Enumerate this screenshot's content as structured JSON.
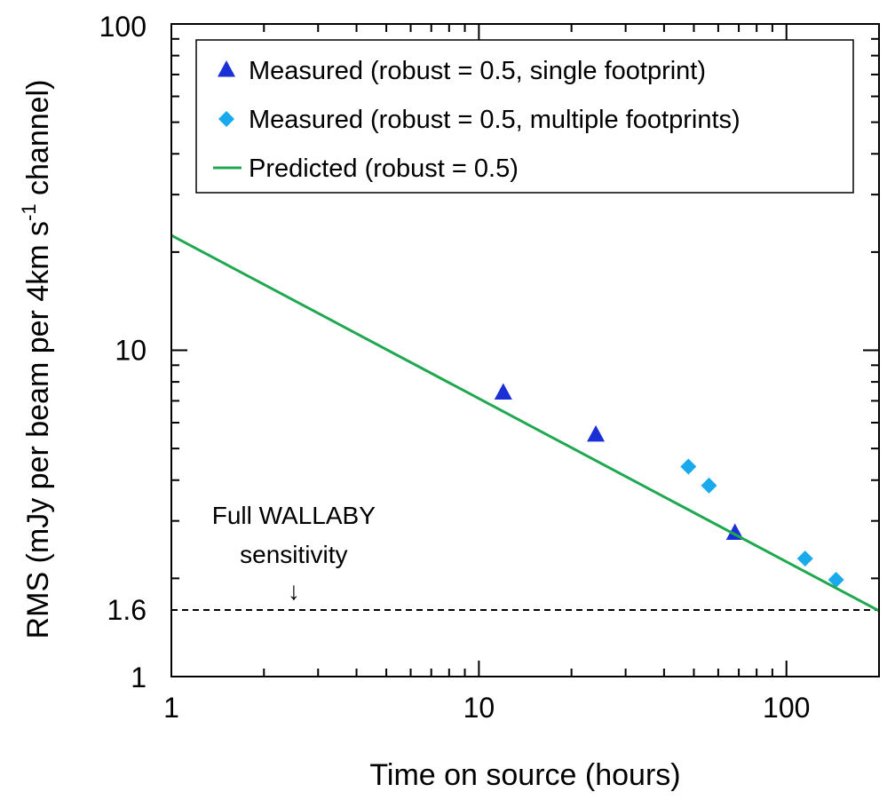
{
  "chart_data": {
    "type": "scatter",
    "title": "",
    "xlabel": "Time on source (hours)",
    "ylabel_parts": {
      "main": "RMS (mJy per beam per 4km s",
      "sup": "-1",
      "tail": " channel)"
    },
    "xscale": "log",
    "yscale": "log",
    "xlim": [
      1,
      200
    ],
    "ylim": [
      1,
      100
    ],
    "x_tick_labels": [
      {
        "value": 1,
        "label": "1"
      },
      {
        "value": 10,
        "label": "10"
      },
      {
        "value": 100,
        "label": "100"
      }
    ],
    "y_tick_labels": [
      {
        "value": 1,
        "label": "1"
      },
      {
        "value": 1.6,
        "label": "1.6"
      },
      {
        "value": 10,
        "label": "10"
      },
      {
        "value": 100,
        "label": "100"
      }
    ],
    "grid": false,
    "legend_position": "top",
    "series": [
      {
        "name": "Measured (robust = 0.5, single footprint)",
        "kind": "scatter",
        "marker": "triangle",
        "color": "#1a2fd6",
        "points": [
          [
            12,
            7.4
          ],
          [
            24,
            5.5
          ],
          [
            68,
            2.75
          ]
        ]
      },
      {
        "name": "Measured (robust = 0.5, multiple footprints)",
        "kind": "scatter",
        "marker": "diamond",
        "color": "#19aaee",
        "points": [
          [
            48,
            4.4
          ],
          [
            56,
            3.85
          ],
          [
            115,
            2.3
          ],
          [
            145,
            1.98
          ]
        ]
      },
      {
        "name": "Predicted (robust = 0.5)",
        "kind": "line",
        "color": "#1fa84f",
        "points": [
          [
            1,
            22.5
          ],
          [
            200,
            1.59
          ]
        ]
      }
    ],
    "reference_line": {
      "value": 1.6,
      "style": "dashed",
      "color": "#000000"
    },
    "annotation": {
      "lines": [
        "Full WALLABY",
        "sensitivity"
      ],
      "arrow": "↓",
      "x": 2.5
    }
  }
}
